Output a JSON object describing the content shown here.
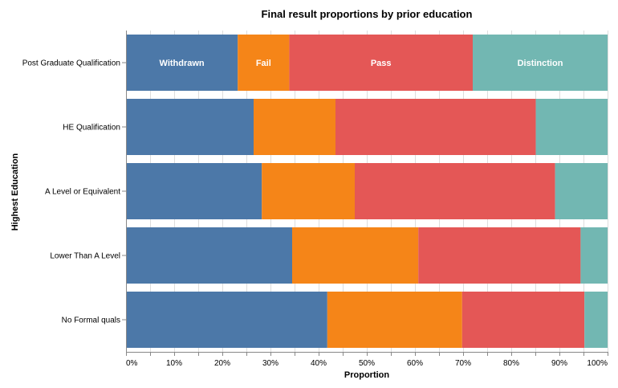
{
  "chart_data": {
    "type": "bar",
    "orientation": "horizontal",
    "stacked": "normalize",
    "title": "Final result proportions by prior education",
    "xlabel": "Proportion",
    "ylabel": "Highest Education",
    "xlim": [
      0,
      1
    ],
    "x_ticks": [
      "0%",
      "10%",
      "20%",
      "30%",
      "40%",
      "50%",
      "60%",
      "70%",
      "80%",
      "90%",
      "100%"
    ],
    "x_tick_values": [
      0,
      0.1,
      0.2,
      0.3,
      0.4,
      0.5,
      0.6,
      0.7,
      0.8,
      0.9,
      1.0
    ],
    "grid": true,
    "categories": [
      "Post Graduate Qualification",
      "HE Qualification",
      "A Level or Equivalent",
      "Lower Than A Level",
      "No Formal quals"
    ],
    "series": [
      {
        "name": "Withdrawn",
        "color": "#4c78a8",
        "values": [
          0.232,
          0.265,
          0.282,
          0.345,
          0.418
        ]
      },
      {
        "name": "Fail",
        "color": "#f58518",
        "values": [
          0.107,
          0.17,
          0.193,
          0.262,
          0.28
        ]
      },
      {
        "name": "Pass",
        "color": "#e45756",
        "values": [
          0.381,
          0.416,
          0.416,
          0.337,
          0.254
        ]
      },
      {
        "name": "Distinction",
        "color": "#72b7b2",
        "values": [
          0.28,
          0.149,
          0.109,
          0.056,
          0.048
        ]
      }
    ],
    "segment_labels_on_category": "Post Graduate Qualification"
  }
}
